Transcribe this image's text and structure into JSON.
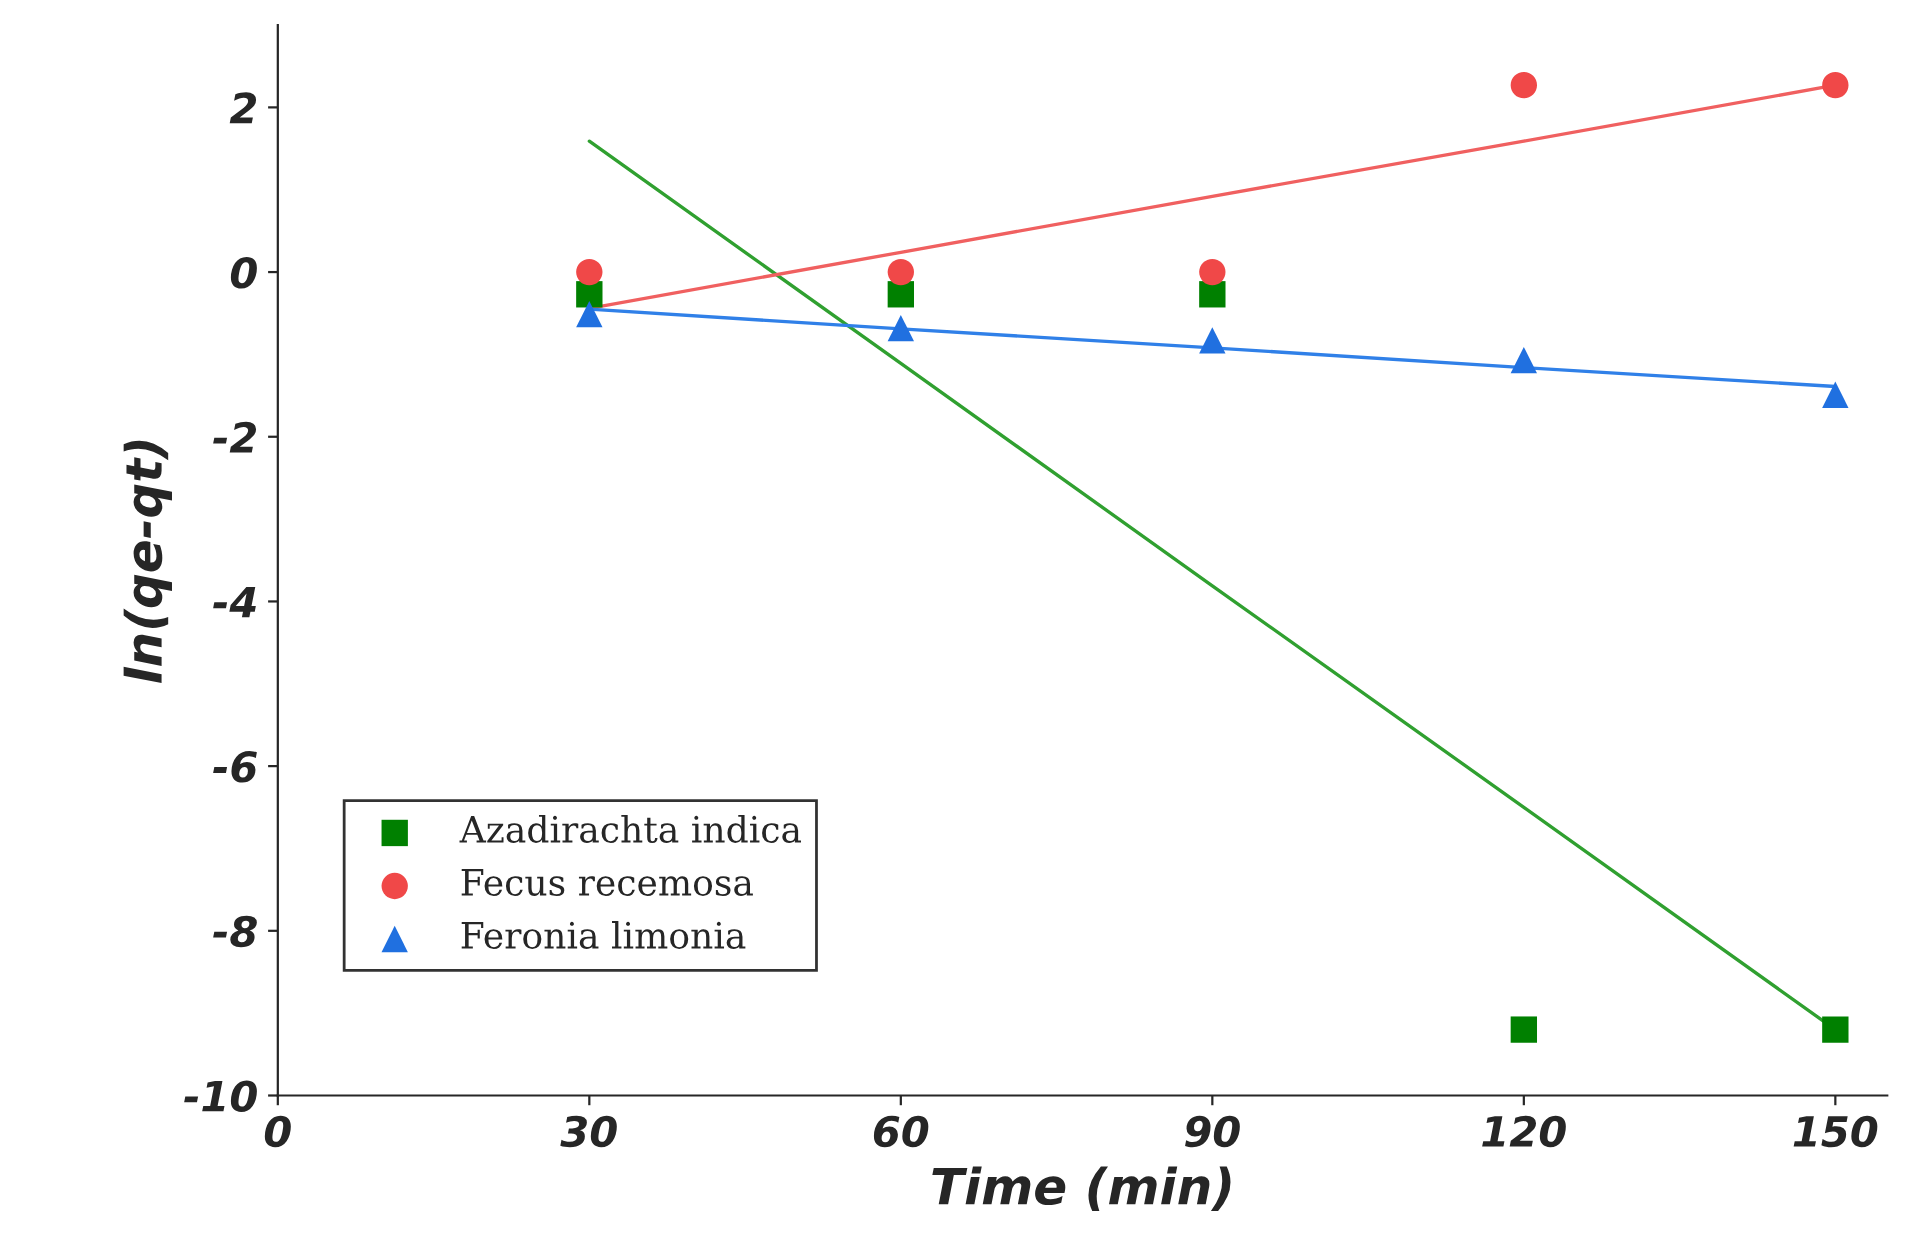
{
  "chart_data": {
    "type": "scatter",
    "xlabel": "Time (min)",
    "ylabel": "ln(qe-qt)",
    "x": [
      30,
      60,
      90,
      120,
      150
    ],
    "series": [
      {
        "name": "Azadirachta indica",
        "color": "#008000",
        "marker": "square",
        "values": [
          -0.27,
          -0.27,
          -0.27,
          -9.2,
          -9.2
        ]
      },
      {
        "name": "Fecus recemosa",
        "color": "#f04848",
        "marker": "circle",
        "values": [
          0,
          0,
          0,
          2.27,
          2.27
        ]
      },
      {
        "name": "Feronia limonia",
        "color": "#2070e0",
        "marker": "triangle",
        "values": [
          -0.51,
          -0.68,
          -0.83,
          -1.07,
          -1.49
        ]
      },
      {
        "type": "line",
        "color": "#30a030",
        "values": [
          1.59,
          -1.11,
          -3.81,
          -6.5,
          -9.2
        ]
      },
      {
        "type": "line",
        "color": "#f06060",
        "values": [
          -0.44,
          0.24,
          0.92,
          1.59,
          2.27
        ]
      },
      {
        "type": "line",
        "color": "#3080e8",
        "values": [
          -0.45,
          -0.69,
          -0.92,
          -1.16,
          -1.39
        ]
      }
    ],
    "xlim": [
      0,
      155
    ],
    "xticks": [
      0,
      30,
      60,
      90,
      120,
      150
    ],
    "ylim": [
      -10,
      3
    ],
    "yticks": [
      -10,
      -8,
      -6,
      -4,
      -2,
      0,
      2
    ],
    "grid": false,
    "legend": "bottom left"
  }
}
